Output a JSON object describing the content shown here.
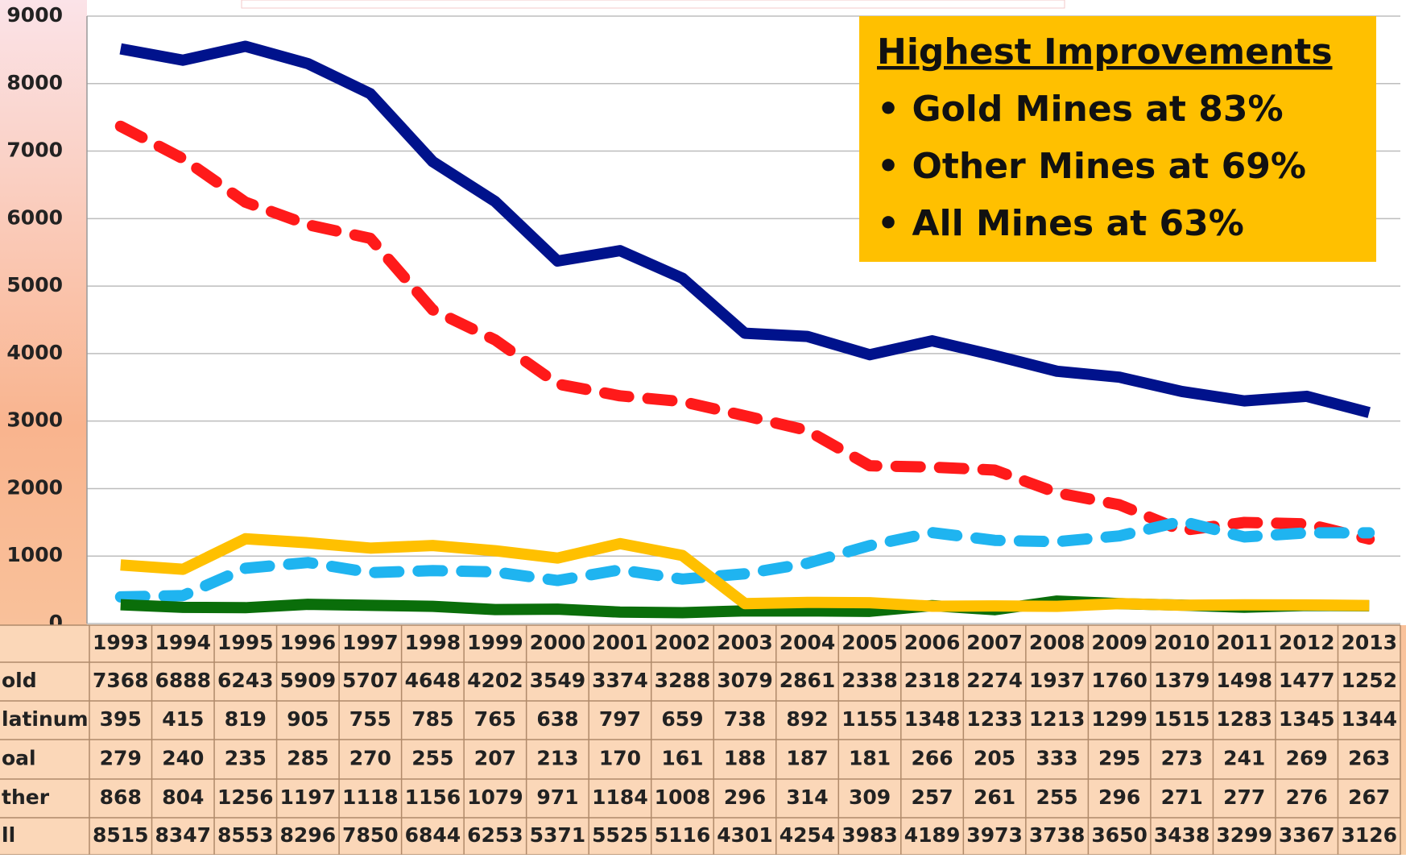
{
  "chart_data": {
    "type": "line",
    "categories": [
      "1993",
      "1994",
      "1995",
      "1996",
      "1997",
      "1998",
      "1999",
      "2000",
      "2001",
      "2002",
      "2003",
      "2004",
      "2005",
      "2006",
      "2007",
      "2008",
      "2009",
      "2010",
      "2011",
      "2012",
      "2013"
    ],
    "series": [
      {
        "name": "old",
        "color": "#ff1a1a",
        "dashed": true,
        "values": [
          7368,
          6888,
          6243,
          5909,
          5707,
          4648,
          4202,
          3549,
          3374,
          3288,
          3079,
          2861,
          2338,
          2318,
          2274,
          1937,
          1760,
          1379,
          1498,
          1477,
          1252
        ]
      },
      {
        "name": "latinum",
        "color": "#1fb4f0",
        "dashed": true,
        "values": [
          395,
          415,
          819,
          905,
          755,
          785,
          765,
          638,
          797,
          659,
          738,
          892,
          1155,
          1348,
          1233,
          1213,
          1299,
          1515,
          1283,
          1345,
          1344
        ]
      },
      {
        "name": "oal",
        "color": "#0a6e0a",
        "dashed": false,
        "values": [
          279,
          240,
          235,
          285,
          270,
          255,
          207,
          213,
          170,
          161,
          188,
          187,
          181,
          266,
          205,
          333,
          295,
          273,
          241,
          269,
          263
        ]
      },
      {
        "name": "ther",
        "color": "#ffc000",
        "dashed": false,
        "values": [
          868,
          804,
          1256,
          1197,
          1118,
          1156,
          1079,
          971,
          1184,
          1008,
          296,
          314,
          309,
          257,
          261,
          255,
          296,
          271,
          277,
          276,
          267
        ]
      },
      {
        "name": "ll",
        "color": "#00128c",
        "dashed": false,
        "values": [
          8515,
          8347,
          8553,
          8296,
          7850,
          6844,
          6253,
          5371,
          5525,
          5116,
          4301,
          4254,
          3983,
          4189,
          3973,
          3738,
          3650,
          3438,
          3299,
          3367,
          3126
        ]
      }
    ],
    "ylim": [
      0,
      9000
    ],
    "yticks": [
      0,
      1000,
      2000,
      3000,
      4000,
      5000,
      6000,
      7000,
      8000,
      9000
    ],
    "grid": true,
    "annotation": {
      "title": "Highest Improvements",
      "lines": [
        "• Gold Mines at 83%",
        "• Other Mines at 69%",
        "• All Mines  at 63%"
      ]
    }
  }
}
